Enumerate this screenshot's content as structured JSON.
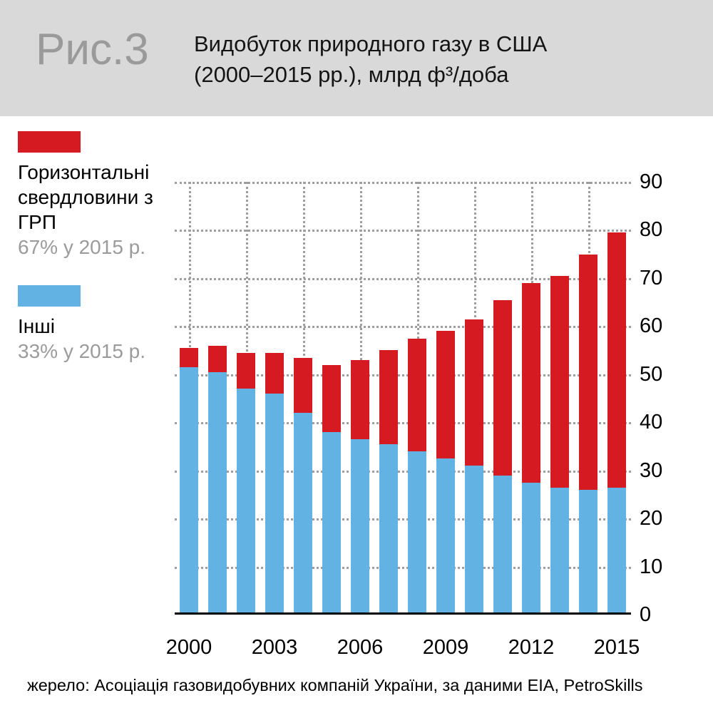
{
  "figure_label": "Рис.3",
  "title_line1": "Видобуток природного газу в США",
  "title_line2": "(2000–2015 рр.), млрд ф³/доба",
  "legend": {
    "items": [
      {
        "name": "horizontal-frac-wells",
        "label": "Горизонтальні свердловини з ГРП",
        "sub": "67% у 2015 р.",
        "color": "#d61a21"
      },
      {
        "name": "other-wells",
        "label": "Інші",
        "sub": "33% у 2015 р.",
        "color": "#62b2e3"
      }
    ]
  },
  "source": "жерело: Асоціація газовидобувних компаній України, за даними EIA, PetroSkills",
  "colors": {
    "red": "#d61a21",
    "blue": "#62b2e3",
    "header_gray": "#d9d9d9",
    "muted_text": "#9b9b9b",
    "grid_dots": "#9e9e9e"
  },
  "chart_data": {
    "type": "bar",
    "stacked": true,
    "title": "Видобуток природного газу в США (2000–2015 рр.), млрд ф³/доба",
    "x": [
      2000,
      2001,
      2002,
      2003,
      2004,
      2005,
      2006,
      2007,
      2008,
      2009,
      2010,
      2011,
      2012,
      2013,
      2014,
      2015
    ],
    "series": [
      {
        "name": "Інші",
        "color": "#62b2e3",
        "values": [
          51,
          50,
          46.5,
          45.5,
          41.5,
          37.5,
          36,
          35,
          33.5,
          32,
          30.5,
          28.5,
          27,
          26,
          25.5,
          26
        ]
      },
      {
        "name": "Горизонтальні свердловини з ГРП",
        "color": "#d61a21",
        "values": [
          4,
          5.5,
          7.5,
          8.5,
          11.5,
          14,
          16.5,
          19.5,
          23.5,
          26.5,
          30.5,
          36.5,
          41.5,
          44,
          49,
          53
        ]
      }
    ],
    "totals": [
      55,
      55.5,
      54,
      54,
      53,
      51.5,
      52.5,
      54.5,
      57,
      58.5,
      61,
      65,
      68.5,
      70,
      74.5,
      79
    ],
    "ylim": [
      0,
      90
    ],
    "ytick_step": 10,
    "yticks": [
      0,
      10,
      20,
      30,
      40,
      50,
      60,
      70,
      80,
      90
    ],
    "xtick_labels": [
      "2000",
      "2003",
      "2006",
      "2009",
      "2012",
      "2015"
    ],
    "ylabel": "млрд ф³/доба",
    "grid": true,
    "legend_position": "left"
  }
}
